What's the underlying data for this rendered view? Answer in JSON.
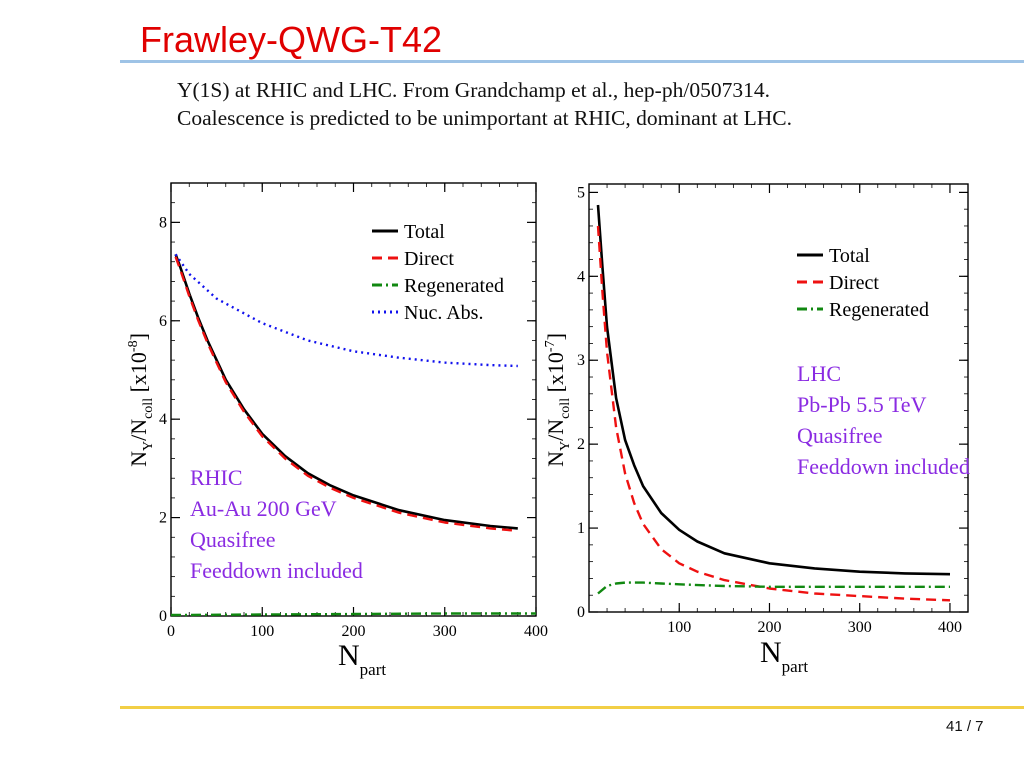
{
  "slide": {
    "title": "Frawley-QWG-T42",
    "caption_line1": "Y(1S) at RHIC and LHC. From Grandchamp et al., hep-ph/0507314.",
    "caption_line2": "Coalescence is predicted to be unimportant at RHIC, dominant at LHC.",
    "page_number": "41 / 7"
  },
  "colors": {
    "title": "#e00000",
    "title_rule": "#9ec3e6",
    "footer_rule": "#f2cf46",
    "total": "#000000",
    "direct": "#ee1111",
    "regenerated": "#118811",
    "nuc_abs": "#1111ee",
    "annotation": "#8a2be2"
  },
  "chart_data": [
    {
      "id": "rhic",
      "type": "line",
      "xlabel_main": "N",
      "xlabel_sub": "part",
      "ylabel": "N_Υ/N_coll [x10^-8]",
      "ylabel_parts": {
        "n": "N",
        "y_sub": "Υ",
        "slash": "/N",
        "coll_sub": "coll",
        "bracket_open": "[x10",
        "exponent": "-8",
        "bracket_close": "]"
      },
      "xlim": [
        0,
        400
      ],
      "ylim": [
        0,
        8.8
      ],
      "xticks": [
        0,
        100,
        200,
        300,
        400
      ],
      "xtick_labels": [
        "0",
        "100",
        "200",
        "300",
        "400"
      ],
      "yticks": [
        0,
        2,
        4,
        6,
        8
      ],
      "ytick_labels": [
        "0",
        "2",
        "4",
        "6",
        "8"
      ],
      "grid": false,
      "legend_position": "top-right",
      "annotation": [
        "RHIC",
        "Au-Au 200 GeV",
        "Quasifree",
        "Feeddown included"
      ],
      "series": [
        {
          "name": "Total",
          "style": "solid",
          "color": "#000000",
          "x": [
            5,
            10,
            20,
            30,
            40,
            50,
            60,
            80,
            100,
            125,
            150,
            175,
            200,
            250,
            300,
            350,
            380
          ],
          "y": [
            7.35,
            7.1,
            6.55,
            6.05,
            5.6,
            5.2,
            4.8,
            4.2,
            3.7,
            3.25,
            2.9,
            2.65,
            2.45,
            2.15,
            1.95,
            1.83,
            1.78
          ]
        },
        {
          "name": "Direct",
          "style": "dashed",
          "color": "#ee1111",
          "x": [
            5,
            10,
            20,
            30,
            40,
            50,
            60,
            80,
            100,
            125,
            150,
            175,
            200,
            250,
            300,
            350,
            380
          ],
          "y": [
            7.3,
            7.05,
            6.5,
            6.0,
            5.55,
            5.15,
            4.75,
            4.15,
            3.65,
            3.2,
            2.85,
            2.6,
            2.4,
            2.1,
            1.9,
            1.78,
            1.73
          ]
        },
        {
          "name": "Regenerated",
          "style": "dashdot",
          "color": "#118811",
          "x": [
            0,
            100,
            200,
            300,
            400
          ],
          "y": [
            0.02,
            0.03,
            0.04,
            0.05,
            0.05
          ]
        },
        {
          "name": "Nuc. Abs.",
          "style": "dotted",
          "color": "#1111ee",
          "x": [
            5,
            20,
            50,
            100,
            150,
            200,
            250,
            300,
            350,
            380
          ],
          "y": [
            7.35,
            6.95,
            6.45,
            5.95,
            5.6,
            5.38,
            5.25,
            5.15,
            5.1,
            5.08
          ]
        }
      ]
    },
    {
      "id": "lhc",
      "type": "line",
      "xlabel_main": "N",
      "xlabel_sub": "part",
      "ylabel": "N_Υ/N_coll [x10^-7]",
      "ylabel_parts": {
        "n": "N",
        "y_sub": "Υ",
        "slash": "/N",
        "coll_sub": "coll",
        "bracket_open": "[x10",
        "exponent": "-7",
        "bracket_close": "]"
      },
      "xlim": [
        0,
        420
      ],
      "ylim": [
        0,
        5.1
      ],
      "xticks": [
        100,
        200,
        300,
        400
      ],
      "xtick_labels": [
        "100",
        "200",
        "300",
        "400"
      ],
      "yticks": [
        0,
        1,
        2,
        3,
        4,
        5
      ],
      "ytick_labels": [
        "0",
        "1",
        "2",
        "3",
        "4",
        "5"
      ],
      "grid": false,
      "legend_position": "top-right",
      "annotation": [
        "LHC",
        "Pb-Pb 5.5 TeV",
        "Quasifree",
        "Feeddown included"
      ],
      "series": [
        {
          "name": "Total",
          "style": "solid",
          "color": "#000000",
          "x": [
            10,
            15,
            20,
            30,
            40,
            50,
            60,
            80,
            100,
            120,
            150,
            200,
            250,
            300,
            350,
            400
          ],
          "y": [
            4.85,
            4.1,
            3.4,
            2.55,
            2.05,
            1.75,
            1.5,
            1.18,
            0.98,
            0.84,
            0.7,
            0.58,
            0.52,
            0.48,
            0.46,
            0.45
          ]
        },
        {
          "name": "Direct",
          "style": "dashed",
          "color": "#ee1111",
          "x": [
            10,
            15,
            20,
            30,
            40,
            50,
            60,
            80,
            100,
            120,
            150,
            200,
            250,
            300,
            350,
            400
          ],
          "y": [
            4.6,
            3.8,
            3.1,
            2.2,
            1.65,
            1.3,
            1.05,
            0.75,
            0.58,
            0.48,
            0.38,
            0.28,
            0.22,
            0.19,
            0.16,
            0.14
          ]
        },
        {
          "name": "Regenerated",
          "style": "dashdot",
          "color": "#118811",
          "x": [
            10,
            20,
            30,
            40,
            60,
            80,
            100,
            150,
            200,
            250,
            300,
            350,
            400
          ],
          "y": [
            0.22,
            0.31,
            0.34,
            0.35,
            0.35,
            0.34,
            0.33,
            0.31,
            0.3,
            0.3,
            0.3,
            0.3,
            0.3
          ]
        }
      ]
    }
  ]
}
